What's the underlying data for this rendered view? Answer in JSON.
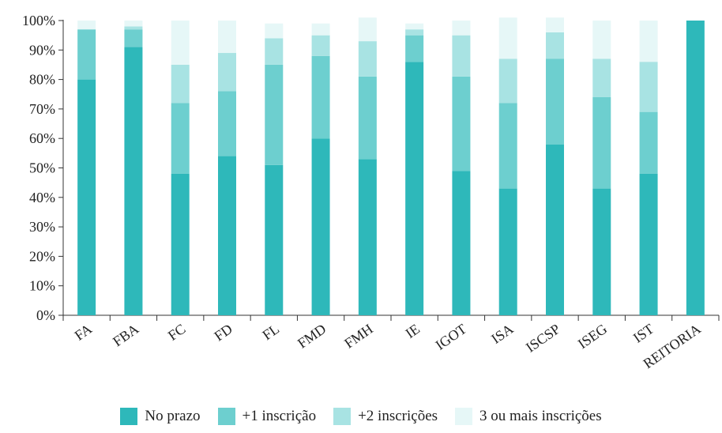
{
  "chart_data": {
    "type": "bar",
    "stacked": true,
    "title": "",
    "xlabel": "",
    "ylabel": "",
    "ylim": [
      0,
      100
    ],
    "y_ticks": [
      "0%",
      "10%",
      "20%",
      "30%",
      "40%",
      "50%",
      "60%",
      "70%",
      "80%",
      "90%",
      "100%"
    ],
    "categories": [
      "FA",
      "FBA",
      "FC",
      "FD",
      "FL",
      "FMD",
      "FMH",
      "IE",
      "IGOT",
      "ISA",
      "ISCSP",
      "ISEG",
      "IST",
      "REITORIA"
    ],
    "series": [
      {
        "name": "No prazo",
        "color": "#2eb8ba",
        "values": [
          80,
          91,
          48,
          54,
          51,
          60,
          53,
          86,
          49,
          43,
          58,
          43,
          48,
          100
        ]
      },
      {
        "name": "+1 inscrição",
        "color": "#6dcfcf",
        "values": [
          17,
          6,
          24,
          22,
          34,
          28,
          28,
          9,
          32,
          29,
          29,
          31,
          21,
          0
        ]
      },
      {
        "name": "+2 inscrições",
        "color": "#a8e3e3",
        "values": [
          0,
          1,
          13,
          13,
          9,
          7,
          12,
          2,
          14,
          15,
          9,
          13,
          17,
          0
        ]
      },
      {
        "name": "3 ou mais inscrições",
        "color": "#e6f7f7",
        "values": [
          3,
          2,
          15,
          11,
          5,
          4,
          8,
          2,
          5,
          14,
          5,
          13,
          14,
          0
        ]
      }
    ],
    "legend_position": "bottom",
    "grid": false
  }
}
